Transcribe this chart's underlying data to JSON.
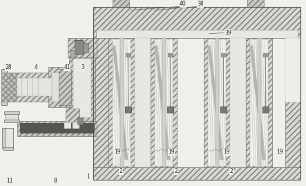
{
  "bg_color": "#f0f0eb",
  "hatch_fc": "#d8d8d0",
  "hatch_ec": "#777777",
  "inner_fc": "#f5f5f0",
  "dark_fc": "#888888",
  "mid_fc": "#bbbbbb",
  "line_c": "#555555",
  "white_fc": "#ffffff"
}
